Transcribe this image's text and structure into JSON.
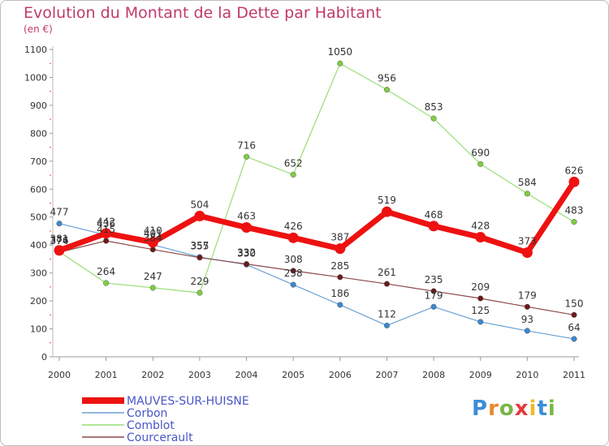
{
  "title": "Evolution du Montant de la Dette par Habitant",
  "unit": "(en €)",
  "logo": {
    "text": "Proxiti",
    "letter_colors": [
      "#3b8ed9",
      "#e8882a",
      "#7ab648",
      "#e23b3b",
      "#f2b92d",
      "#3b8ed9",
      "#7ab648"
    ]
  },
  "chart_data": {
    "type": "line",
    "title": "Evolution du Montant de la Dette par Habitant",
    "ylabel": "(en €)",
    "xlabel": "",
    "x": [
      "2000",
      "2001",
      "2002",
      "2003",
      "2004",
      "2005",
      "2006",
      "2007",
      "2008",
      "2009",
      "2010",
      "2011"
    ],
    "ylim": [
      0,
      1100
    ],
    "yticks": [
      "0",
      "100",
      "200",
      "300",
      "400",
      "500",
      "600",
      "700",
      "800",
      "900",
      "1000",
      "1100"
    ],
    "grid": false,
    "legend_position": "bottom-left",
    "series": [
      {
        "name": "MAUVES-SUR-HUISNE",
        "color": "#ee1111",
        "marker": "#ee1111",
        "width": 7,
        "values": [
          381,
          442,
          410,
          504,
          463,
          426,
          387,
          519,
          468,
          428,
          373,
          626
        ],
        "labels": [
          "381",
          "442",
          "410",
          "504",
          "463",
          "426",
          "387",
          "519",
          "468",
          "428",
          "373",
          "626"
        ]
      },
      {
        "name": "Corbon",
        "color": "#6aa1d6",
        "marker": "#3b88d0",
        "width": 1.2,
        "values": [
          477,
          436,
          401,
          357,
          330,
          258,
          186,
          112,
          179,
          125,
          93,
          64
        ],
        "labels": [
          "477",
          "436",
          "401",
          "357",
          "330",
          "258",
          "186",
          "112",
          "179",
          "125",
          "93",
          "64"
        ]
      },
      {
        "name": "Comblot",
        "color": "#99dd77",
        "marker": "#7fce40",
        "width": 1.2,
        "values": [
          376,
          264,
          247,
          229,
          716,
          652,
          1050,
          956,
          853,
          690,
          584,
          483
        ],
        "labels": [
          "376",
          "264",
          "247",
          "229",
          "716",
          "652",
          "1050",
          "956",
          "853",
          "690",
          "584",
          "483"
        ]
      },
      {
        "name": "Courcerault",
        "color": "#8b4a4a",
        "marker": "#6a1a1a",
        "width": 1.2,
        "values": [
          374,
          415,
          384,
          355,
          332,
          308,
          285,
          261,
          235,
          209,
          179,
          150
        ],
        "labels": [
          "374",
          "415",
          "384",
          "355",
          "332",
          "308",
          "285",
          "261",
          "235",
          "209",
          "179",
          "150"
        ]
      }
    ]
  }
}
